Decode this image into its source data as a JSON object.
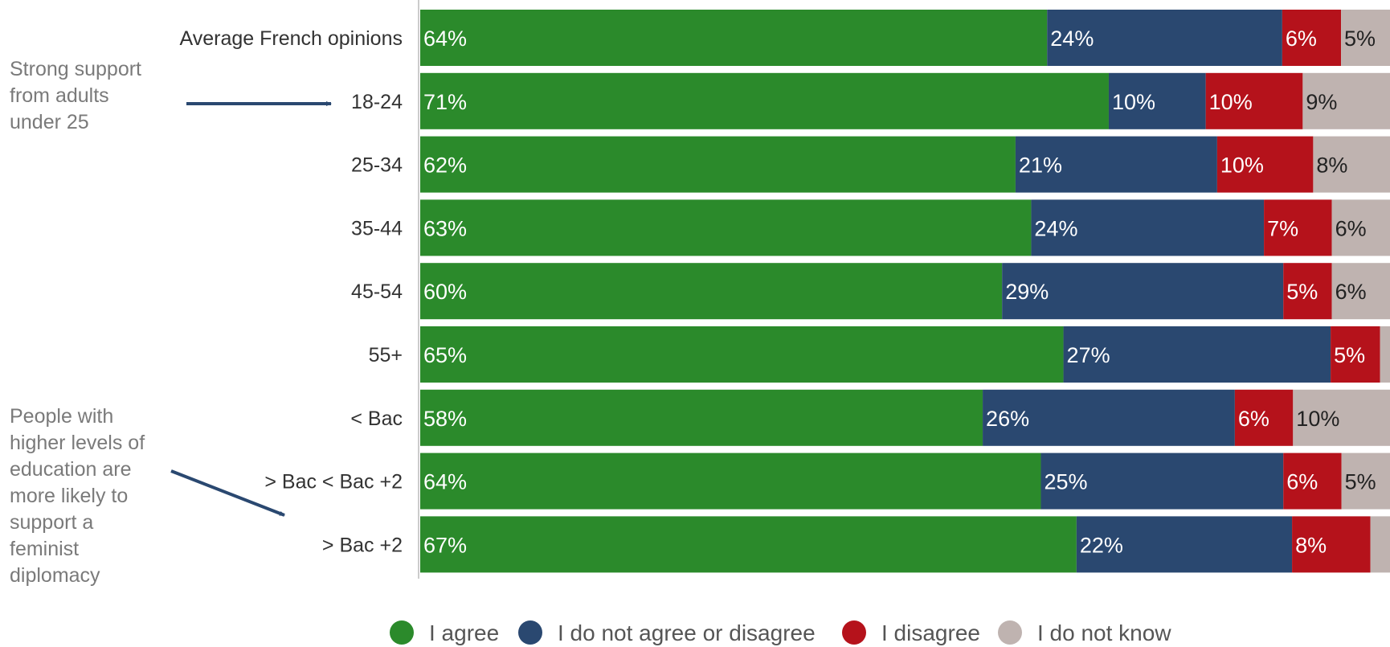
{
  "chart_data": {
    "type": "bar",
    "orientation": "horizontal",
    "stacked": true,
    "percent": true,
    "categories": [
      "Average French opinions",
      "18-24",
      "25-34",
      "35-44",
      "45-54",
      "55+",
      "< Bac",
      "> Bac < Bac +2",
      "> Bac +2"
    ],
    "series": [
      {
        "name": "I agree",
        "color": "#2b8a2b",
        "values": [
          64,
          71,
          62,
          63,
          60,
          65,
          58,
          64,
          67
        ],
        "labels": [
          "64%",
          "71%",
          "62%",
          "63%",
          "60%",
          "65%",
          "58%",
          "64%",
          "67%"
        ]
      },
      {
        "name": "I do not agree or disagree",
        "color": "#2a4870",
        "values": [
          24,
          10,
          21,
          24,
          29,
          27,
          26,
          25,
          22
        ],
        "labels": [
          "24%",
          "10%",
          "21%",
          "24%",
          "29%",
          "27%",
          "26%",
          "25%",
          "22%"
        ]
      },
      {
        "name": "I disagree",
        "color": "#b5121b",
        "values": [
          6,
          10,
          10,
          7,
          5,
          5,
          6,
          6,
          8
        ],
        "labels": [
          "6%",
          "10%",
          "10%",
          "7%",
          "5%",
          "5%",
          "6%",
          "6%",
          "8%"
        ]
      },
      {
        "name": "I do not know",
        "color": "#bfb3b0",
        "values": [
          5,
          9,
          8,
          6,
          6,
          1,
          10,
          5,
          2
        ],
        "labels": [
          "5%",
          "9%",
          "8%",
          "6%",
          "6%",
          "",
          "10%",
          "5%",
          ""
        ]
      }
    ],
    "legend": "bottom",
    "annotations": [
      {
        "lines": [
          "Strong support",
          "from adults",
          "under 25"
        ],
        "points_to": "18-24"
      },
      {
        "lines": [
          "People with",
          "higher levels of",
          "education are",
          "more likely to",
          "support a",
          "feminist",
          "diplomacy"
        ],
        "points_to": "> Bac +2"
      }
    ],
    "colors": {
      "annotation_text": "#7a7a7a",
      "arrow": "#2a4870",
      "axis": "#cccccc"
    }
  }
}
